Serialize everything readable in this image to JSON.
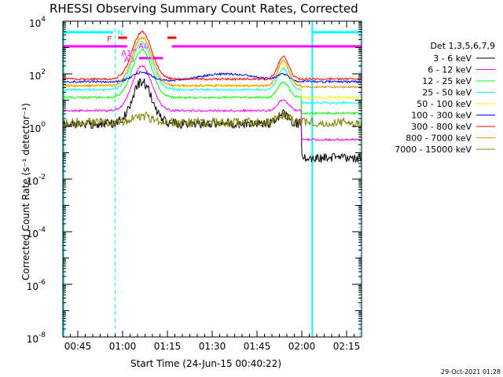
{
  "chart_data": {
    "type": "line",
    "title": "RHESSI Observing Summary Count Rates, Corrected",
    "xlabel": "Start Time (24-Jun-15 00:40:22)",
    "ylabel": "Corrected Count Rate (s⁻¹ detector⁻¹)",
    "yscale": "log",
    "ylim_exp": [
      -8,
      4
    ],
    "xlim_min": [
      0,
      100
    ],
    "x_ticks": [
      {
        "label": "00:45",
        "min": 5
      },
      {
        "label": "01:00",
        "min": 20
      },
      {
        "label": "01:15",
        "min": 35
      },
      {
        "label": "01:30",
        "min": 50
      },
      {
        "label": "01:45",
        "min": 65
      },
      {
        "label": "02:00",
        "min": 80
      },
      {
        "label": "02:15",
        "min": 95
      }
    ],
    "y_ticks": [
      {
        "base": "10",
        "exp": "4",
        "value": 4
      },
      {
        "base": "10",
        "exp": "2",
        "value": 2
      },
      {
        "base": "10",
        "exp": "0",
        "value": 0
      },
      {
        "base": "10",
        "exp": "-2",
        "value": -2
      },
      {
        "base": "10",
        "exp": "-4",
        "value": -4
      },
      {
        "base": "10",
        "exp": "-6",
        "value": -6
      },
      {
        "base": "10",
        "exp": "-8",
        "value": -8
      }
    ],
    "legend_title": "Det 1,3,5,6,7,9",
    "series": [
      {
        "name": "3 - 6 keV",
        "color": "#000000",
        "base": 0.1,
        "p1": 1.7,
        "p2": 0.5,
        "post": -1.2
      },
      {
        "name": "6 - 12 keV",
        "color": "#ff00ff",
        "base": 0.6,
        "p1": 2.3,
        "p2": 1.0,
        "post": -0.5
      },
      {
        "name": "12 - 25 keV",
        "color": "#00ff00",
        "base": 1.1,
        "p1": 2.9,
        "p2": 1.7,
        "post": 0.5
      },
      {
        "name": "25 - 50 keV",
        "color": "#00ffff",
        "base": 1.4,
        "p1": 3.2,
        "p2": 2.2,
        "post": 0.9
      },
      {
        "name": "50 - 100 keV",
        "color": "#ffff00",
        "base": 1.55,
        "p1": 3.35,
        "p2": 2.4,
        "post": 1.1
      },
      {
        "name": "100 - 300 keV",
        "color": "#0000ff",
        "base": 1.7,
        "p1": 2.05,
        "p2": 1.95,
        "post": 1.7
      },
      {
        "name": "300 - 800 keV",
        "color": "#ff0000",
        "base": 1.8,
        "p1": 3.6,
        "p2": 2.65,
        "post": 1.8
      },
      {
        "name": "800 - 7000 keV",
        "color": "#ff8c00",
        "base": 1.55,
        "p1": 3.4,
        "p2": 2.5,
        "post": 1.5
      },
      {
        "name": "7000 - 15000 keV",
        "color": "#808000",
        "base": 0.15,
        "p1": 0.4,
        "p2": 0.45,
        "post": 0.15
      }
    ],
    "annotations": [
      {
        "text": "N",
        "color": "#00ffff"
      },
      {
        "text": "F",
        "color": "#ff0000"
      },
      {
        "text": "A0",
        "color": "#ff00ff"
      },
      {
        "text": "A1",
        "color": "#ff00ff"
      },
      {
        "text": "A3",
        "color": "#ff00ff"
      }
    ],
    "footer": "29-Oct-2021 01:28"
  }
}
